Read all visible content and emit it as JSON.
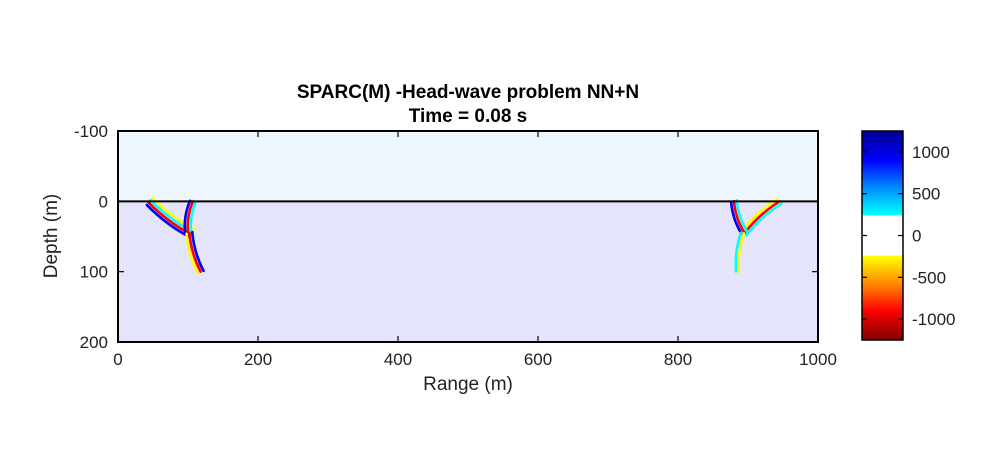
{
  "chart_data": {
    "type": "heatmap",
    "title": "SPARC(M) -Head-wave problem NN+N",
    "subtitle": "Time = 0.08 s",
    "xlabel": "Range (m)",
    "ylabel": "Depth (m)",
    "xlim": [
      0,
      1000
    ],
    "ylim": [
      -100,
      200
    ],
    "y_reversed": true,
    "xticks": [
      0,
      200,
      400,
      600,
      800,
      1000
    ],
    "yticks": [
      -100,
      0,
      100,
      200
    ],
    "interface_depth": 0,
    "regions": [
      {
        "name": "upper medium",
        "depth_range": [
          -100,
          0
        ],
        "color": "#eef6fe"
      },
      {
        "name": "lower medium",
        "depth_range": [
          0,
          200
        ],
        "color": "#e4e4fa"
      }
    ],
    "colorbar": {
      "ticks": [
        1000,
        500,
        0,
        -500,
        -1000
      ],
      "range": [
        -1250,
        1250
      ],
      "colormap": "jet_with_white_center",
      "stops": [
        {
          "v": 1250,
          "color": "#00008f"
        },
        {
          "v": 900,
          "color": "#0000ff"
        },
        {
          "v": 600,
          "color": "#0080ff"
        },
        {
          "v": 250,
          "color": "#00ffff"
        },
        {
          "v": 230,
          "color": "#ffffff"
        },
        {
          "v": -230,
          "color": "#ffffff"
        },
        {
          "v": -250,
          "color": "#ffff00"
        },
        {
          "v": -600,
          "color": "#ff8000"
        },
        {
          "v": -900,
          "color": "#ff0000"
        },
        {
          "v": -1250,
          "color": "#800000"
        }
      ]
    },
    "wavefronts": [
      {
        "name": "left head-wave front",
        "x": [
          45,
          105
        ],
        "y": [
          0,
          45
        ],
        "colors": [
          "#ffff00",
          "#00ffff",
          "#ff0000",
          "#0000ff"
        ]
      },
      {
        "name": "left direct-wave arc",
        "x": [
          107,
          100
        ],
        "y": [
          0,
          45
        ],
        "colors": [
          "#00ffff",
          "#ff0000",
          "#0000ff"
        ]
      },
      {
        "name": "left lower arc",
        "x": [
          102,
          118
        ],
        "y": [
          45,
          100
        ],
        "colors": [
          "#0000ff",
          "#ff0000",
          "#ffff00"
        ]
      },
      {
        "name": "right head-wave front",
        "x": [
          945,
          895
        ],
        "y": [
          0,
          45
        ],
        "colors": [
          "#00ffff",
          "#ff0000",
          "#ffff00"
        ]
      },
      {
        "name": "right direct-wave arc",
        "x": [
          880,
          895
        ],
        "y": [
          0,
          45
        ],
        "colors": [
          "#00ffff",
          "#ff0000",
          "#0000ff"
        ]
      },
      {
        "name": "right lower arc",
        "x": [
          892,
          885
        ],
        "y": [
          45,
          100
        ],
        "colors": [
          "#ffff00",
          "#00ffff"
        ]
      }
    ]
  }
}
